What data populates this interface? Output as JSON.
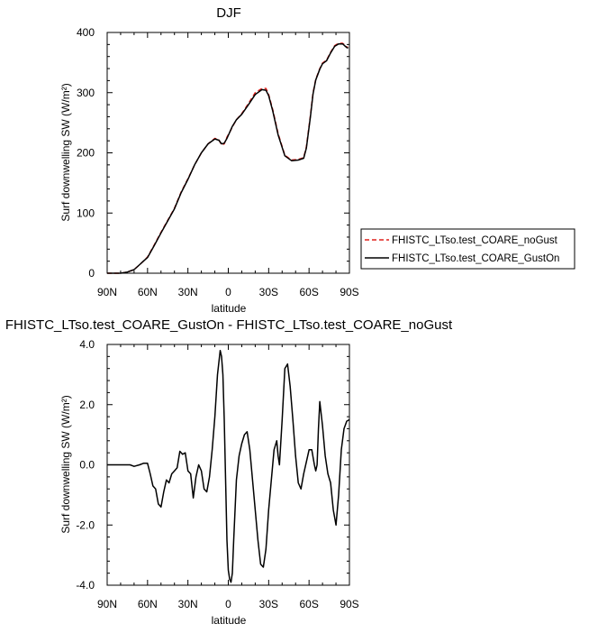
{
  "colors": {
    "gust_on": "#000000",
    "no_gust": "#e0201b"
  },
  "chart_data": [
    {
      "type": "line",
      "title": "DJF",
      "xlabel": "latitude",
      "ylabel": "Surf downwelling SW (W/m²)",
      "xlim": [
        90,
        -90
      ],
      "ylim": [
        0,
        400
      ],
      "x_ticks": [
        "90N",
        "60N",
        "30N",
        "0",
        "30S",
        "60S",
        "90S"
      ],
      "x_tick_values": [
        90,
        60,
        30,
        0,
        -30,
        -60,
        -90
      ],
      "y_ticks": [
        "0",
        "100",
        "200",
        "300",
        "400"
      ],
      "y_tick_values": [
        0,
        100,
        200,
        300,
        400
      ],
      "legend_position": "right",
      "series": [
        {
          "name": "FHISTC_LTso.test_COARE_noGust",
          "style": "dashed",
          "x": [
            90,
            85,
            80,
            75,
            70,
            67,
            63,
            60,
            55,
            50,
            45,
            40,
            35,
            30,
            25,
            20,
            15,
            10,
            7,
            5,
            3,
            1,
            -1,
            -3,
            -6,
            -10,
            -15,
            -20,
            -25,
            -28,
            -30,
            -33,
            -37,
            -42,
            -47,
            -52,
            -56,
            -58,
            -61,
            -63,
            -65,
            -68,
            -70,
            -73,
            -76,
            -79,
            -82,
            -85,
            -87,
            -88,
            -89
          ],
          "y": [
            0,
            0,
            0,
            2,
            6,
            12,
            20,
            27,
            47,
            68,
            88,
            108,
            135,
            157,
            180,
            200,
            215,
            224,
            222,
            213,
            215,
            226,
            234,
            243,
            255,
            265,
            282,
            300,
            307,
            307,
            297,
            272,
            232,
            196,
            188,
            189,
            192,
            210,
            262,
            300,
            322,
            340,
            349,
            354,
            367,
            378,
            382,
            382,
            378,
            376,
            375
          ]
        },
        {
          "name": "FHISTC_LTso.test_COARE_GustOn",
          "style": "solid",
          "x": [
            90,
            85,
            80,
            75,
            70,
            67,
            63,
            60,
            55,
            50,
            45,
            40,
            35,
            30,
            25,
            20,
            15,
            10,
            7,
            5,
            3,
            1,
            -1,
            -3,
            -6,
            -10,
            -15,
            -20,
            -25,
            -28,
            -30,
            -33,
            -37,
            -42,
            -47,
            -52,
            -56,
            -58,
            -61,
            -63,
            -65,
            -68,
            -70,
            -73,
            -76,
            -79,
            -82,
            -85,
            -87,
            -88,
            -89
          ],
          "y": [
            0,
            0,
            0,
            2,
            6,
            12,
            20,
            26,
            46,
            67,
            87,
            107,
            134,
            156,
            180,
            200,
            215,
            223,
            221,
            215,
            216,
            224,
            234,
            244,
            255,
            264,
            280,
            297,
            305,
            304,
            295,
            270,
            230,
            195,
            187,
            188,
            191,
            208,
            260,
            298,
            321,
            339,
            348,
            353,
            366,
            377,
            381,
            381,
            377,
            375,
            374
          ]
        }
      ]
    },
    {
      "type": "line",
      "title": "FHISTC_LTso.test_COARE_GustOn - FHISTC_LTso.test_COARE_noGust",
      "xlabel": "latitude",
      "ylabel": "Surf downwelling SW (W/m²)",
      "xlim": [
        90,
        -90
      ],
      "ylim": [
        -4,
        4
      ],
      "x_ticks": [
        "90N",
        "60N",
        "30N",
        "0",
        "30S",
        "60S",
        "90S"
      ],
      "x_tick_values": [
        90,
        60,
        30,
        0,
        -30,
        -60,
        -90
      ],
      "y_ticks": [
        "-4.0",
        "-2.0",
        "0.0",
        "2.0",
        "4.0"
      ],
      "y_tick_values": [
        -4,
        -2,
        0,
        2,
        4
      ],
      "series": [
        {
          "style": "solid",
          "x": [
            90,
            80,
            73,
            70,
            66,
            63,
            60,
            58,
            56,
            54,
            52,
            50,
            48,
            46,
            44,
            42,
            40,
            38,
            36,
            34,
            32,
            30,
            28,
            26,
            24,
            22,
            20,
            18,
            16,
            14,
            12,
            10,
            8,
            6,
            5,
            4,
            3,
            2,
            1,
            0,
            -1,
            -2,
            -3,
            -4,
            -5,
            -6,
            -8,
            -10,
            -12,
            -14,
            -16,
            -18,
            -20,
            -22,
            -24,
            -26,
            -28,
            -30,
            -32,
            -34,
            -36,
            -37,
            -38,
            -40,
            -42,
            -44,
            -46,
            -48,
            -50,
            -52,
            -54,
            -56,
            -58,
            -60,
            -62,
            -64,
            -65,
            -66,
            -67,
            -68,
            -70,
            -72,
            -74,
            -76,
            -78,
            -80,
            -82,
            -84,
            -86,
            -88,
            -90
          ],
          "y": [
            0,
            0,
            0,
            -0.05,
            0,
            0.05,
            0.05,
            -0.3,
            -0.7,
            -0.8,
            -1.3,
            -1.4,
            -0.9,
            -0.5,
            -0.6,
            -0.3,
            -0.2,
            -0.1,
            0.45,
            0.35,
            0.4,
            -0.2,
            -0.3,
            -1.1,
            -0.4,
            0,
            -0.2,
            -0.8,
            -0.9,
            -0.4,
            0.5,
            1.6,
            3.0,
            3.8,
            3.6,
            3.0,
            1.5,
            -0.5,
            -2.5,
            -3.5,
            -3.8,
            -3.9,
            -3.6,
            -2.5,
            -1.5,
            -0.5,
            0.3,
            0.7,
            1.0,
            1.1,
            0.5,
            -0.5,
            -1.5,
            -2.5,
            -3.3,
            -3.4,
            -2.8,
            -1.5,
            -0.5,
            0.5,
            0.8,
            0.3,
            0,
            1.5,
            3.2,
            3.35,
            2.6,
            1.5,
            0.3,
            -0.6,
            -0.8,
            -0.3,
            0.1,
            0.5,
            0.5,
            0,
            -0.2,
            0,
            1.2,
            2.1,
            1.3,
            0.3,
            -0.3,
            -0.6,
            -1.5,
            -2.0,
            -1.0,
            0.5,
            1.2,
            1.45,
            1.5
          ]
        }
      ]
    }
  ]
}
